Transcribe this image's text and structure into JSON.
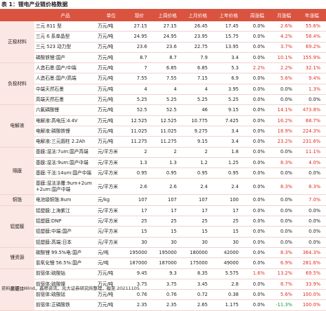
{
  "title": "表 1：锂电产业链价格数据",
  "header": [
    "",
    "产品",
    "单位",
    "现价",
    "上周价格",
    "上月价格",
    "上年价格",
    "周涨幅",
    "月涨幅",
    "年涨幅"
  ],
  "groups": [
    {
      "category": "正极材料",
      "rows": [
        [
          "三元 811 型",
          "万元/吨",
          "27.15",
          "27.15",
          "26.45",
          "17.45",
          "0.0%",
          "2.6%",
          "55.6%"
        ],
        [
          "三元 6 系单晶型",
          "万元/吨",
          "24.95",
          "24.95",
          "23.95",
          "15.75",
          "0.0%",
          "4.2%",
          "58.4%"
        ],
        [
          "三元 523 动力型",
          "万元/吨",
          "23.6",
          "23.6",
          "22.75",
          "13.95",
          "0.0%",
          "3.7%",
          "69.2%"
        ],
        [
          "磷酸铁锂:国产",
          "万元/吨",
          "8.7",
          "8.7",
          "7.9",
          "3.4",
          "0.0%",
          "10.1%",
          "155.9%"
        ]
      ]
    },
    {
      "category": "负极材料",
      "rows": [
        [
          "人造石墨:国产/中端",
          "万元/吨",
          "7",
          "6.85",
          "6.85",
          "5.3",
          "2.2%",
          "2.2%",
          "32.1%"
        ],
        [
          "人造石墨:国产/高端",
          "万元/吨",
          "7.55",
          "7.55",
          "7.15",
          "6.9",
          "0.0%",
          "5.6%",
          "9.4%"
        ],
        [
          "中端天然石墨",
          "万元/吨",
          "4",
          "4",
          "4",
          "3.95",
          "0.0%",
          "0.0%",
          "1.3%"
        ],
        [
          "高端天然石墨",
          "万元/吨",
          "5.25",
          "5.25",
          "5.25",
          "5.25",
          "0.0%",
          "0.0%",
          "0.0%"
        ]
      ]
    },
    {
      "category": "电解液",
      "rows": [
        [
          "六氟磷酸锂",
          "万元/吨",
          "52.5",
          "52.5",
          "46",
          "9.15",
          "0.0%",
          "14.1%",
          "473.8%"
        ],
        [
          "电解液:高电压:4.4V",
          "万元/吨",
          "12.525",
          "12.525",
          "10.775",
          "7.425",
          "0.0%",
          "16.2%",
          "68.7%"
        ],
        [
          "电解液:磷酸铁锂",
          "万元/吨",
          "11.025",
          "11.025",
          "9.275",
          "3.4",
          "0.0%",
          "18.9%",
          "224.3%"
        ],
        [
          "电解液:三元圆柱 2.2Ah",
          "万元/吨",
          "11.275",
          "11.275",
          "9.15",
          "3.4",
          "0.0%",
          "23.2%",
          "231.6%"
        ]
      ]
    },
    {
      "category": "隔膜",
      "rows": [
        [
          "基膜:湿法:7um:国产高端",
          "元/平方米",
          "2",
          "2",
          "2",
          "1.8",
          "0.0%",
          "0.0%",
          "11.1%"
        ],
        [
          "基膜:湿法:9um:国产中端",
          "元/平方米",
          "1.3",
          "1.3",
          "1.2",
          "1.25",
          "0.0%",
          "8.3%",
          "4.0%"
        ],
        [
          "基膜:干法:14um:国产中端",
          "元/平方米",
          "0.95",
          "0.95",
          "0.95",
          "0.95",
          "0.0%",
          "0.0%",
          "0.0%"
        ],
        [
          "基膜:湿法涂覆:9um+2um +2um:国产中端",
          "元/平方米",
          "2.6",
          "2.6",
          "2.4",
          "2.4",
          "0.0%",
          "8.3%",
          "8.3%"
        ]
      ]
    },
    {
      "category": "铜箔",
      "rows": [
        [
          "电池级铜箔:8um",
          "元/kg",
          "107",
          "107",
          "107",
          "100",
          "0.0%",
          "0.0%",
          "7.0%"
        ]
      ]
    },
    {
      "category": "铝塑膜",
      "rows": [
        [
          "铝塑膜:上海紫江",
          "元/平方米",
          "17",
          "17",
          "17",
          "17",
          "0.0%",
          "0.0%",
          "0.0%"
        ],
        [
          "铝塑膜:DNP",
          "元/平方米",
          "25",
          "25",
          "25",
          "25",
          "0.0%",
          "0.0%",
          "0.0%"
        ],
        [
          "铝塑膜:中端:国产",
          "元/平方米",
          "15",
          "15",
          "15",
          "15",
          "0.0%",
          "0.0%",
          "0.0%"
        ],
        [
          "铝塑膜:高端:日本",
          "元/平方米",
          "30",
          "30",
          "30",
          "30",
          "0.0%",
          "0.0%",
          "0.0%"
        ]
      ]
    },
    {
      "category": "锂资源",
      "rows": [
        [
          "碳酸锂 99.5%电:国产",
          "元/吨",
          "195000",
          "195000",
          "180000",
          "42000",
          "0.0%",
          "8.3%",
          "364.3%"
        ],
        [
          "氢氧化锂 56.5%:国产",
          "元/吨",
          "187000",
          "187000",
          "175000",
          "49000",
          "0.0%",
          "6.9%",
          "281.6%"
        ]
      ]
    },
    {
      "category": "前驱体",
      "rows": [
        [
          "前驱体:硫酸钴",
          "万元/吨",
          "9.45",
          "9.3",
          "8.35",
          "5.575",
          "1.6%",
          "13.2%",
          "69.5%"
        ],
        [
          "前驱体:硫酸镍",
          "万元/吨",
          "3.75",
          "3.75",
          "3.45",
          "2.8",
          "0.0%",
          "8.7%",
          "33.9%"
        ],
        [
          "前驱体:硫酸锰",
          "万元/吨",
          "0.76",
          "0.76",
          "0.72",
          "0.38",
          "0.0%",
          "5.6%",
          "100.0%"
        ],
        [
          "前驱体:正磷酸铁",
          "万元/吨",
          "2.35",
          "2.35",
          "2.65",
          "1.175",
          "0.0%",
          "-11.3%",
          "100.0%"
        ]
      ]
    }
  ],
  "footer": "资料来源：Wind，鑫椤资讯，光大证券研究所整理，截至 20211105"
}
